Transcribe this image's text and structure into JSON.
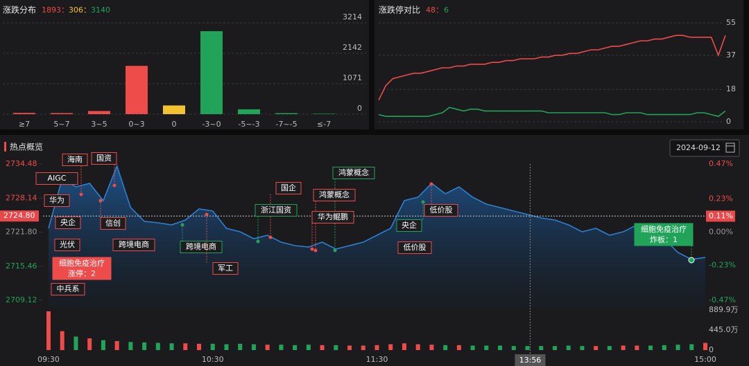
{
  "colors": {
    "up": "#ee4b4b",
    "down": "#22a35a",
    "flat": "#f2c230",
    "neutral": "#9a9a9a"
  },
  "distribution": {
    "type": "bar",
    "title": "涨跌分布",
    "up_count": 1893,
    "flat_count": 306,
    "down_count": 3140,
    "separator": "：",
    "categories": [
      "≥7",
      "5~7",
      "3~5",
      "0~3",
      "0",
      "-3~0",
      "-5~-3",
      "-7~-5",
      "≤-7"
    ],
    "values": [
      45,
      38,
      110,
      1700,
      306,
      2920,
      170,
      35,
      15
    ],
    "tones": [
      "up",
      "up",
      "up",
      "up",
      "flat",
      "down",
      "down",
      "down",
      "down"
    ],
    "ylim": [
      0,
      3214
    ],
    "yticks": [
      0,
      1071,
      2142,
      3214
    ],
    "grid": true
  },
  "limit_compare": {
    "type": "line",
    "title": "涨跌停对比",
    "up_count": 48,
    "down_count": 6,
    "ylim": [
      0,
      55
    ],
    "yticks": [
      0,
      18,
      37,
      55
    ],
    "grid": true,
    "series": [
      {
        "tone": "up",
        "values": [
          12,
          20,
          24,
          25,
          26,
          27,
          27,
          28,
          29,
          30,
          30,
          31,
          31,
          32,
          32,
          32,
          33,
          33,
          34,
          34,
          35,
          35,
          35,
          36,
          36,
          37,
          37,
          38,
          38,
          39,
          40,
          40,
          41,
          42,
          42,
          43,
          44,
          45,
          45,
          46,
          46,
          47,
          48,
          48,
          47,
          47,
          47,
          47,
          37,
          48
        ]
      },
      {
        "tone": "down",
        "values": [
          4,
          3,
          3,
          3,
          3,
          3,
          3,
          3,
          4,
          5,
          8,
          7,
          6,
          7,
          7,
          6,
          6,
          6,
          6,
          6,
          6,
          6,
          6,
          6,
          5,
          5,
          5,
          5,
          5,
          5,
          5,
          5,
          5,
          4,
          4,
          5,
          5,
          5,
          4,
          4,
          4,
          4,
          4,
          4,
          4,
          5,
          5,
          4,
          3,
          6
        ]
      }
    ]
  },
  "hotspot": {
    "type": "line",
    "title": "热点概览",
    "date": "2024-09-12",
    "ylim": [
      2709.12,
      2734.48
    ],
    "yticks": [
      2709.12,
      2715.46,
      {
        "value": 2721.8,
        "label": "2721.80"
      },
      2728.14,
      2734.48
    ],
    "y2lim": [
      -0.47,
      0.47
    ],
    "y2ticks": [
      {
        "value": -0.47,
        "label": "-0.47%"
      },
      {
        "value": -0.23,
        "label": "-0.23%"
      },
      {
        "value": 0,
        "label": "0.00%"
      },
      {
        "value": 0.23,
        "label": "0.23%"
      },
      {
        "value": 0.47,
        "label": "0.47%"
      }
    ],
    "xlim": [
      0,
      48
    ],
    "xticks": [
      {
        "value": 0,
        "label": "09:30"
      },
      {
        "value": 12,
        "label": "10:30"
      },
      {
        "value": 24,
        "label": "11:30"
      },
      {
        "value": 48,
        "label": "15:00"
      }
    ],
    "cursor": {
      "time": {
        "value": 35.2,
        "label": "13:56"
      },
      "price": {
        "value": 2724.8,
        "label": "2724.80"
      },
      "pct": {
        "value": 0.11,
        "label": "0.11%"
      }
    },
    "values": [
      2722.51,
      2731.78,
      2730.23,
      2730.88,
      2727.66,
      2734.09,
      2726.37,
      2723.8,
      2723.54,
      2723.15,
      2724.05,
      2726.11,
      2725.73,
      2722.51,
      2721.86,
      2720.58,
      2721.22,
      2719.93,
      2719.29,
      2719.03,
      2719.93,
      2718.65,
      2719.29,
      2719.93,
      2721.22,
      2722.51,
      2727.66,
      2728.3,
      2730.88,
      2728.94,
      2730.23,
      2728.3,
      2727.01,
      2726.37,
      2725.73,
      2725.08,
      2724.44,
      2724.05,
      2723.15,
      2721.86,
      2722.51,
      2721.22,
      2721.86,
      2723.15,
      2721.22,
      2720.58,
      2718,
      2716.72,
      2717.1
    ],
    "volume": {
      "ylim": [
        0,
        889.9
      ],
      "yticks": [
        0,
        {
          "value": 445.0,
          "label": "445.0万"
        },
        {
          "value": 889.9,
          "label": "889.9万"
        }
      ],
      "values": [
        860,
        420,
        300,
        260,
        220,
        200,
        180,
        170,
        160,
        150,
        150,
        140,
        140,
        130,
        140,
        130,
        120,
        120,
        110,
        120,
        110,
        110,
        100,
        100,
        110,
        130,
        150,
        130,
        120,
        110,
        110,
        100,
        100,
        100,
        90,
        90,
        90,
        90,
        100,
        90,
        90,
        90,
        100,
        100,
        100,
        110,
        120,
        130,
        160
      ]
    },
    "annotations": [
      {
        "label": "海南",
        "tone": "up"
      },
      {
        "label": "国资",
        "tone": "up"
      },
      {
        "label": "AIGC",
        "tone": "up"
      },
      {
        "label": "华为",
        "tone": "up"
      },
      {
        "label": "央企",
        "tone": "up"
      },
      {
        "label": "信创",
        "tone": "up"
      },
      {
        "label": "光伏",
        "tone": "up"
      },
      {
        "label": "细胞免疫治疗",
        "detail": "涨停：2",
        "tone": "up"
      },
      {
        "label": "中兵系",
        "tone": "up"
      },
      {
        "label": "跨境电商",
        "tone": "up"
      },
      {
        "label": "跨境电商",
        "tone": "down"
      },
      {
        "label": "军工",
        "tone": "up"
      },
      {
        "label": "国企",
        "tone": "up"
      },
      {
        "label": "浙江国资",
        "tone": "down"
      },
      {
        "label": "鸿蒙概念",
        "tone": "down"
      },
      {
        "label": "鸿蒙概念",
        "tone": "up"
      },
      {
        "label": "华为鲲鹏",
        "tone": "up"
      },
      {
        "label": "央企",
        "tone": "down"
      },
      {
        "label": "低价股",
        "tone": "up"
      },
      {
        "label": "低价股",
        "tone": "up"
      },
      {
        "label": "细胞免疫治疗",
        "detail": "炸板：1",
        "tone": "down"
      }
    ]
  }
}
